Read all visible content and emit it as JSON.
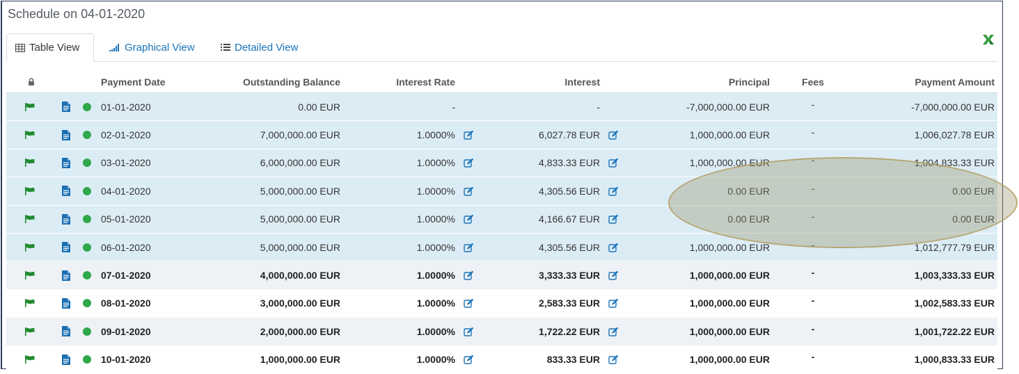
{
  "title": "Schedule on 04-01-2020",
  "tabs": [
    {
      "label": "Table View",
      "icon": "table-icon",
      "active": true
    },
    {
      "label": "Graphical View",
      "icon": "bar-chart-icon",
      "active": false
    },
    {
      "label": "Detailed View",
      "icon": "list-icon",
      "active": false
    }
  ],
  "columns": {
    "payment_date": "Payment Date",
    "outstanding_balance": "Outstanding Balance",
    "interest_rate": "Interest Rate",
    "interest": "Interest",
    "principal": "Principal",
    "fees": "Fees",
    "payment_amount": "Payment Amount"
  },
  "colors": {
    "accent": "#1a73b8",
    "flag": "#1f8a2e",
    "status_dot": "#2ea84a",
    "pending_row": "#dcecf5"
  },
  "rows": [
    {
      "date": "01-01-2020",
      "balance": "0.00 EUR",
      "rate": "-",
      "interest": "-",
      "principal": "-7,000,000.00 EUR",
      "fees": "-",
      "payment": "-7,000,000.00 EUR",
      "state": "pending",
      "editable": false
    },
    {
      "date": "02-01-2020",
      "balance": "7,000,000.00 EUR",
      "rate": "1.0000%",
      "interest": "6,027.78 EUR",
      "principal": "1,000,000.00 EUR",
      "fees": "-",
      "payment": "1,006,027.78 EUR",
      "state": "pending",
      "editable": true
    },
    {
      "date": "03-01-2020",
      "balance": "6,000,000.00 EUR",
      "rate": "1.0000%",
      "interest": "4,833.33 EUR",
      "principal": "1,000,000.00 EUR",
      "fees": "-",
      "payment": "1,004,833.33 EUR",
      "state": "pending",
      "editable": true
    },
    {
      "date": "04-01-2020",
      "balance": "5,000,000.00 EUR",
      "rate": "1.0000%",
      "interest": "4,305.56 EUR",
      "principal": "0.00 EUR",
      "fees": "-",
      "payment": "0.00 EUR",
      "state": "pending",
      "editable": true
    },
    {
      "date": "05-01-2020",
      "balance": "5,000,000.00 EUR",
      "rate": "1.0000%",
      "interest": "4,166.67 EUR",
      "principal": "0.00 EUR",
      "fees": "-",
      "payment": "0.00 EUR",
      "state": "pending",
      "editable": true
    },
    {
      "date": "06-01-2020",
      "balance": "5,000,000.00 EUR",
      "rate": "1.0000%",
      "interest": "4,305.56 EUR",
      "principal": "1,000,000.00 EUR",
      "fees": "-",
      "payment": "1,012,777.79 EUR",
      "state": "pending",
      "editable": true
    },
    {
      "date": "07-01-2020",
      "balance": "4,000,000.00 EUR",
      "rate": "1.0000%",
      "interest": "3,333.33 EUR",
      "principal": "1,000,000.00 EUR",
      "fees": "-",
      "payment": "1,003,333.33 EUR",
      "state": "future-alt",
      "editable": true
    },
    {
      "date": "08-01-2020",
      "balance": "3,000,000.00 EUR",
      "rate": "1.0000%",
      "interest": "2,583.33 EUR",
      "principal": "1,000,000.00 EUR",
      "fees": "-",
      "payment": "1,002,583.33 EUR",
      "state": "future-plain",
      "editable": true
    },
    {
      "date": "09-01-2020",
      "balance": "2,000,000.00 EUR",
      "rate": "1.0000%",
      "interest": "1,722.22 EUR",
      "principal": "1,000,000.00 EUR",
      "fees": "-",
      "payment": "1,001,722.22 EUR",
      "state": "future-alt",
      "editable": true
    },
    {
      "date": "10-01-2020",
      "balance": "1,000,000.00 EUR",
      "rate": "1.0000%",
      "interest": "833.33 EUR",
      "principal": "1,000,000.00 EUR",
      "fees": "-",
      "payment": "1,000,833.33 EUR",
      "state": "future-plain",
      "editable": true
    }
  ]
}
